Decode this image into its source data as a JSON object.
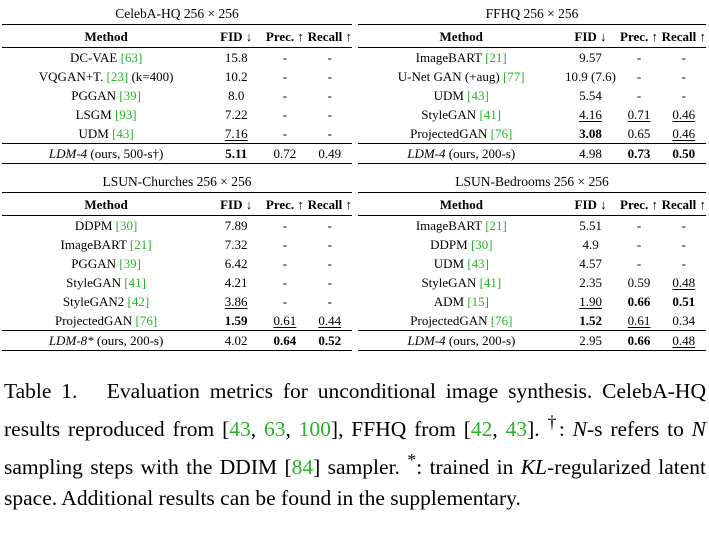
{
  "headers": {
    "method": "Method",
    "fid": "FID ↓",
    "prec": "Prec. ↑",
    "recall": "Recall ↑"
  },
  "blocks": [
    {
      "title": "CelebA-HQ 256 × 256",
      "rows": [
        {
          "method": "DC-VAE ",
          "ref": "[63]",
          "suffix": "",
          "fid": "15.8",
          "prec": "-",
          "recall": "-",
          "fid_style": "",
          "prec_style": "",
          "recall_style": ""
        },
        {
          "method": "VQGAN+T. ",
          "ref": "[23]",
          "suffix": " (k=400)",
          "fid": "10.2",
          "prec": "-",
          "recall": "-",
          "fid_style": "",
          "prec_style": "",
          "recall_style": ""
        },
        {
          "method": "PGGAN ",
          "ref": "[39]",
          "suffix": "",
          "fid": "8.0",
          "prec": "-",
          "recall": "-",
          "fid_style": "",
          "prec_style": "",
          "recall_style": ""
        },
        {
          "method": "LSGM ",
          "ref": "[93]",
          "suffix": "",
          "fid": "7.22",
          "prec": "-",
          "recall": "-",
          "fid_style": "",
          "prec_style": "",
          "recall_style": ""
        },
        {
          "method": "UDM ",
          "ref": "[43]",
          "suffix": "",
          "fid": "7.16",
          "prec": "-",
          "recall": "-",
          "fid_style": "u",
          "prec_style": "",
          "recall_style": ""
        }
      ],
      "ours": {
        "name": "LDM-4",
        "detail": " (ours, 500-s†)",
        "fid": "5.11",
        "prec": "0.72",
        "recall": "0.49",
        "fid_style": "b",
        "prec_style": "",
        "recall_style": ""
      }
    },
    {
      "title": "FFHQ 256 × 256",
      "rows": [
        {
          "method": "ImageBART ",
          "ref": "[21]",
          "suffix": "",
          "fid": "9.57",
          "prec": "-",
          "recall": "-",
          "fid_style": "",
          "prec_style": "",
          "recall_style": ""
        },
        {
          "method": "U-Net GAN (+aug) ",
          "ref": "[77]",
          "suffix": "",
          "fid": "10.9 (7.6)",
          "prec": "-",
          "recall": "-",
          "fid_style": "",
          "prec_style": "",
          "recall_style": ""
        },
        {
          "method": "UDM ",
          "ref": "[43]",
          "suffix": "",
          "fid": "5.54",
          "prec": "-",
          "recall": "-",
          "fid_style": "",
          "prec_style": "",
          "recall_style": ""
        },
        {
          "method": "StyleGAN ",
          "ref": "[41]",
          "suffix": "",
          "fid": "4.16",
          "prec": "0.71",
          "recall": "0.46",
          "fid_style": "u",
          "prec_style": "u",
          "recall_style": "u"
        },
        {
          "method": "ProjectedGAN ",
          "ref": "[76]",
          "suffix": "",
          "fid": "3.08",
          "prec": "0.65",
          "recall": "0.46",
          "fid_style": "b",
          "prec_style": "",
          "recall_style": "u"
        }
      ],
      "ours": {
        "name": "LDM-4",
        "detail": " (ours, 200-s)",
        "fid": "4.98",
        "prec": "0.73",
        "recall": "0.50",
        "fid_style": "",
        "prec_style": "b",
        "recall_style": "b"
      }
    },
    {
      "title": "LSUN-Churches 256 × 256",
      "rows": [
        {
          "method": "DDPM ",
          "ref": "[30]",
          "suffix": "",
          "fid": "7.89",
          "prec": "-",
          "recall": "-",
          "fid_style": "",
          "prec_style": "",
          "recall_style": ""
        },
        {
          "method": "ImageBART ",
          "ref": "[21]",
          "suffix": "",
          "fid": "7.32",
          "prec": "-",
          "recall": "-",
          "fid_style": "",
          "prec_style": "",
          "recall_style": ""
        },
        {
          "method": "PGGAN ",
          "ref": "[39]",
          "suffix": "",
          "fid": "6.42",
          "prec": "-",
          "recall": "-",
          "fid_style": "",
          "prec_style": "",
          "recall_style": ""
        },
        {
          "method": "StyleGAN ",
          "ref": "[41]",
          "suffix": "",
          "fid": "4.21",
          "prec": "-",
          "recall": "-",
          "fid_style": "",
          "prec_style": "",
          "recall_style": ""
        },
        {
          "method": "StyleGAN2 ",
          "ref": "[42]",
          "suffix": "",
          "fid": "3.86",
          "prec": "-",
          "recall": "-",
          "fid_style": "u",
          "prec_style": "",
          "recall_style": ""
        },
        {
          "method": "ProjectedGAN ",
          "ref": "[76]",
          "suffix": "",
          "fid": "1.59",
          "prec": "0.61",
          "recall": "0.44",
          "fid_style": "b",
          "prec_style": "u",
          "recall_style": "u"
        }
      ],
      "ours": {
        "name": "LDM-8*",
        "detail": " (ours, 200-s)",
        "fid": "4.02",
        "prec": "0.64",
        "recall": "0.52",
        "fid_style": "",
        "prec_style": "b",
        "recall_style": "b"
      }
    },
    {
      "title": "LSUN-Bedrooms 256 × 256",
      "rows": [
        {
          "method": "ImageBART ",
          "ref": "[21]",
          "suffix": "",
          "fid": "5.51",
          "prec": "-",
          "recall": "-",
          "fid_style": "",
          "prec_style": "",
          "recall_style": ""
        },
        {
          "method": "DDPM ",
          "ref": "[30]",
          "suffix": "",
          "fid": "4.9",
          "prec": "-",
          "recall": "-",
          "fid_style": "",
          "prec_style": "",
          "recall_style": ""
        },
        {
          "method": "UDM ",
          "ref": "[43]",
          "suffix": "",
          "fid": "4.57",
          "prec": "-",
          "recall": "-",
          "fid_style": "",
          "prec_style": "",
          "recall_style": ""
        },
        {
          "method": "StyleGAN ",
          "ref": "[41]",
          "suffix": "",
          "fid": "2.35",
          "prec": "0.59",
          "recall": "0.48",
          "fid_style": "",
          "prec_style": "",
          "recall_style": "u"
        },
        {
          "method": "ADM ",
          "ref": "[15]",
          "suffix": "",
          "fid": "1.90",
          "prec": "0.66",
          "recall": "0.51",
          "fid_style": "u",
          "prec_style": "b",
          "recall_style": "b"
        },
        {
          "method": "ProjectedGAN ",
          "ref": "[76]",
          "suffix": "",
          "fid": "1.52",
          "prec": "0.61",
          "recall": "0.34",
          "fid_style": "b",
          "prec_style": "u",
          "recall_style": ""
        }
      ],
      "ours": {
        "name": "LDM-4",
        "detail": " (ours, 200-s)",
        "fid": "2.95",
        "prec": "0.66",
        "recall": "0.48",
        "fid_style": "",
        "prec_style": "b",
        "recall_style": "u"
      }
    }
  ],
  "caption": {
    "label": "Table 1.",
    "p1": "Evaluation metrics for unconditional image synthesis. CelebA-HQ results reproduced from [",
    "r1": "43",
    "s1": ", ",
    "r2": "63",
    "s2": ", ",
    "r3": "100",
    "p2": "], FFHQ from [",
    "r4": "42",
    "s3": ", ",
    "r5": "43",
    "p3": "]. ",
    "dagger": "†",
    "p4": ": ",
    "n1": "N",
    "p5": "-s refers to ",
    "n2": "N",
    "p6": " sampling steps with the DDIM [",
    "r6": "84",
    "p7": "] sampler. ",
    "star": "*",
    "p8": ": trained in ",
    "kl": "KL",
    "p9": "-regularized latent space. Additional results can be found in the supplementary."
  }
}
